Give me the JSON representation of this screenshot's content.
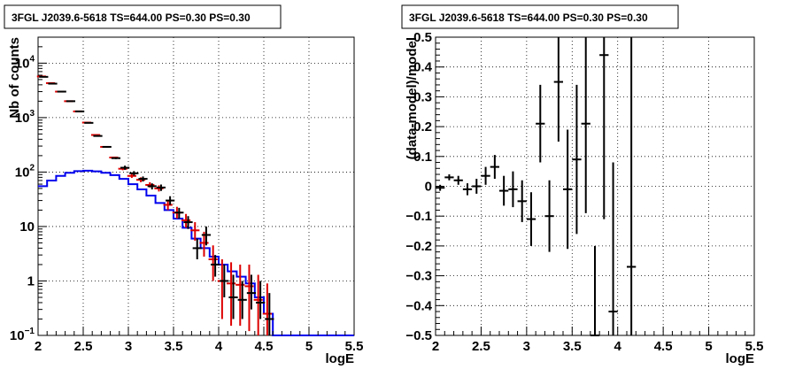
{
  "colors": {
    "data": "#000000",
    "model": "#dd0000",
    "source": "#0000ee"
  },
  "chart_data": [
    {
      "type": "histogram",
      "title": "3FGL J2039.6-5618 TS=644.00 PS=0.30 PS=0.30",
      "xlabel": "logE",
      "ylabel": "Nb of counts",
      "xlim": [
        2.0,
        5.5
      ],
      "ylim": [
        0.1,
        30000
      ],
      "yscale": "log",
      "grid": true,
      "xticks": [
        "2",
        "2.5",
        "3",
        "3.5",
        "4",
        "4.5",
        "5",
        "5.5"
      ],
      "yticks": [
        {
          "value": 0.1,
          "base": "10",
          "exp": "−1"
        },
        {
          "value": 1,
          "label": "1"
        },
        {
          "value": 10,
          "label": "10"
        },
        {
          "value": 100,
          "base": "10",
          "exp": "2"
        },
        {
          "value": 1000,
          "base": "10",
          "exp": "3"
        },
        {
          "value": 10000,
          "base": "10",
          "exp": "4"
        }
      ],
      "x_centers": [
        2.05,
        2.15,
        2.25,
        2.35,
        2.45,
        2.55,
        2.65,
        2.75,
        2.85,
        2.95,
        3.05,
        3.15,
        3.25,
        3.35,
        3.45,
        3.55,
        3.65,
        3.75,
        3.85,
        3.95,
        4.05,
        4.15,
        4.25,
        4.35,
        4.45,
        4.55
      ],
      "series": [
        {
          "role": "data",
          "values": [
            5600,
            4200,
            3000,
            2000,
            1300,
            800,
            460,
            290,
            180,
            120,
            95,
            75,
            55,
            52,
            30,
            18,
            12,
            4,
            7,
            2,
            1,
            0.5,
            0.45,
            0.6,
            0.4,
            0.2
          ],
          "err_lo": [
            5500,
            4100,
            2950,
            1960,
            1270,
            780,
            445,
            280,
            173,
            110,
            86,
            67,
            48,
            45,
            25,
            14,
            9,
            2.5,
            4.5,
            1.2,
            0.5,
            0.2,
            0.2,
            0.3,
            0.2,
            0.1
          ],
          "err_hi": [
            5700,
            4300,
            3050,
            2040,
            1330,
            820,
            475,
            300,
            187,
            131,
            104,
            83,
            62,
            59,
            36,
            22,
            15.5,
            6,
            10,
            3,
            2,
            1.3,
            1.0,
            1.3,
            1.0,
            0.6
          ]
        },
        {
          "role": "model",
          "values": [
            5700,
            4300,
            3000,
            2000,
            1300,
            810,
            480,
            290,
            185,
            115,
            85,
            72,
            58,
            50,
            25,
            18,
            13,
            8.5,
            5,
            2.5,
            1,
            0.9,
            0.85,
            0.8,
            0.45,
            0.25
          ],
          "err_lo": [
            5600,
            4200,
            2950,
            1960,
            1270,
            790,
            465,
            280,
            178,
            108,
            78,
            65,
            52,
            44,
            20,
            14,
            9.5,
            5.5,
            2.8,
            1.0,
            0.2,
            0.15,
            0.15,
            0.12,
            0.1,
            0.1
          ],
          "err_hi": [
            5800,
            4400,
            3050,
            2040,
            1330,
            830,
            495,
            300,
            192,
            122,
            92,
            80,
            65,
            57,
            30,
            23,
            17,
            12,
            8,
            4.5,
            2.5,
            2.2,
            2.0,
            2.0,
            1.3,
            0.9
          ]
        },
        {
          "role": "source",
          "x_edges": [
            2.0,
            2.1,
            2.2,
            2.3,
            2.4,
            2.5,
            2.6,
            2.7,
            2.8,
            2.9,
            3.0,
            3.1,
            3.2,
            3.3,
            3.4,
            3.5,
            3.6,
            3.7,
            3.8,
            3.9,
            4.0,
            4.1,
            4.2,
            4.3,
            4.4,
            4.5,
            4.6,
            5.5
          ],
          "values": [
            55,
            70,
            85,
            97,
            104,
            106,
            103,
            97,
            88,
            75,
            60,
            48,
            37,
            27,
            20,
            14,
            9.5,
            6,
            4,
            2.8,
            2,
            1.5,
            1.2,
            0.9,
            0.5,
            0.25,
            0.1
          ]
        }
      ]
    },
    {
      "type": "scatter",
      "title": "3FGL J2039.6-5618 TS=644.00 PS=0.30 PS=0.30",
      "xlabel": "logE",
      "ylabel": "(data-model)/model",
      "xlim": [
        2.0,
        5.5
      ],
      "ylim": [
        -0.5,
        0.5
      ],
      "grid": true,
      "xticks": [
        "2",
        "2.5",
        "3",
        "3.5",
        "4",
        "4.5",
        "5",
        "5.5"
      ],
      "yticks": [
        "−0.5",
        "−0.4",
        "−0.3",
        "−0.2",
        "−0.1",
        "0",
        "0.1",
        "0.2",
        "0.3",
        "0.4",
        "0.5"
      ],
      "points": [
        {
          "x": 2.05,
          "y": -0.005,
          "err": 0.01
        },
        {
          "x": 2.15,
          "y": 0.03,
          "err": 0.01
        },
        {
          "x": 2.25,
          "y": 0.02,
          "err": 0.015
        },
        {
          "x": 2.35,
          "y": -0.01,
          "err": 0.02
        },
        {
          "x": 2.45,
          "y": 0.0,
          "err": 0.025
        },
        {
          "x": 2.55,
          "y": 0.035,
          "err": 0.03
        },
        {
          "x": 2.65,
          "y": 0.065,
          "err": 0.04
        },
        {
          "x": 2.75,
          "y": -0.015,
          "err": 0.05
        },
        {
          "x": 2.85,
          "y": -0.01,
          "err": 0.06
        },
        {
          "x": 2.95,
          "y": -0.05,
          "err": 0.07
        },
        {
          "x": 3.05,
          "y": -0.11,
          "err": 0.09
        },
        {
          "x": 3.15,
          "y": 0.21,
          "err": 0.13
        },
        {
          "x": 3.25,
          "y": -0.1,
          "err": 0.12
        },
        {
          "x": 3.35,
          "y": 0.35,
          "err": 0.2
        },
        {
          "x": 3.45,
          "y": -0.01,
          "err": 0.2
        },
        {
          "x": 3.55,
          "y": 0.09,
          "err": 0.25
        },
        {
          "x": 3.65,
          "y": 0.21,
          "err": 0.3
        },
        {
          "x": 3.75,
          "y": -0.5,
          "err": 0.3
        },
        {
          "x": 3.85,
          "y": 0.44,
          "err": 0.55
        },
        {
          "x": 3.95,
          "y": -0.42,
          "err": 0.5
        },
        {
          "x": 4.15,
          "y": -0.27,
          "err": 0.8
        }
      ]
    }
  ]
}
